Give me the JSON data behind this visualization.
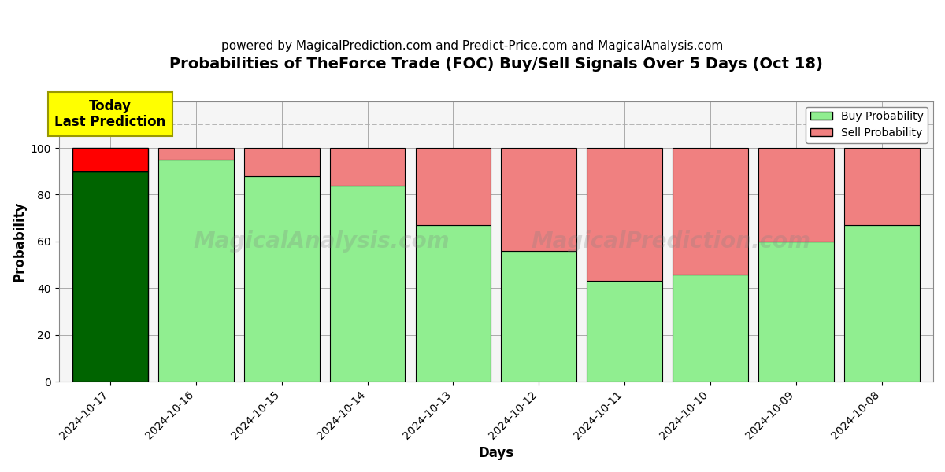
{
  "title": "Probabilities of TheForce Trade (FOC) Buy/Sell Signals Over 5 Days (Oct 18)",
  "subtitle": "powered by MagicalPrediction.com and Predict-Price.com and MagicalAnalysis.com",
  "xlabel": "Days",
  "ylabel": "Probability",
  "dates": [
    "2024-10-17",
    "2024-10-16",
    "2024-10-15",
    "2024-10-14",
    "2024-10-13",
    "2024-10-12",
    "2024-10-11",
    "2024-10-10",
    "2024-10-09",
    "2024-10-08"
  ],
  "buy_values": [
    90,
    95,
    88,
    84,
    67,
    56,
    43,
    46,
    60,
    67
  ],
  "sell_values": [
    10,
    5,
    12,
    16,
    33,
    44,
    57,
    54,
    40,
    33
  ],
  "today_bar_index": 0,
  "today_buy_color": "#006400",
  "today_sell_color": "#ff0000",
  "normal_buy_color": "#90EE90",
  "normal_sell_color": "#F08080",
  "bar_edge_color": "#000000",
  "today_annotation_text": "Today\nLast Prediction",
  "today_annotation_bg": "#FFFF00",
  "today_annotation_edge": "#999900",
  "dashed_line_y": 110,
  "ylim": [
    0,
    120
  ],
  "yticks": [
    0,
    20,
    40,
    60,
    80,
    100
  ],
  "legend_buy_label": "Buy Probability",
  "legend_sell_label": "Sell Probability",
  "figsize": [
    12,
    6
  ],
  "dpi": 100,
  "title_fontsize": 14,
  "subtitle_fontsize": 11,
  "axis_label_fontsize": 12,
  "tick_fontsize": 10,
  "bg_color": "#ffffff",
  "plot_bg_color": "#f5f5f5",
  "grid_color": "#aaaaaa",
  "bar_width": 0.88,
  "watermark1": "MagicalAnalysis.com",
  "watermark2": "MagicalPrediction.com"
}
